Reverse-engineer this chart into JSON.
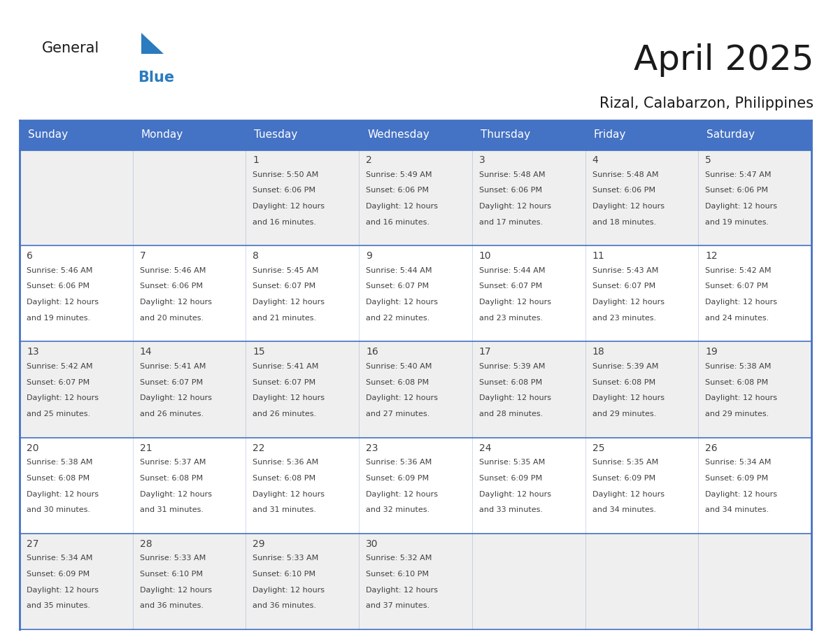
{
  "title": "April 2025",
  "subtitle": "Rizal, Calabarzon, Philippines",
  "header_bg_color": "#4472C4",
  "header_text_color": "#FFFFFF",
  "day_names": [
    "Sunday",
    "Monday",
    "Tuesday",
    "Wednesday",
    "Thursday",
    "Friday",
    "Saturday"
  ],
  "title_font_size": 36,
  "subtitle_font_size": 15,
  "date_font_size": 10,
  "cell_font_size": 8,
  "header_font_size": 11,
  "cell_text_color": "#404040",
  "row_colors": [
    "#EFEFEF",
    "#FFFFFF"
  ],
  "grid_color": "#4472C4",
  "logo_general_color": "#1A1A1A",
  "logo_blue_color": "#2B7BBF",
  "days": [
    {
      "date": 1,
      "col": 2,
      "row": 0,
      "sunrise": "5:50 AM",
      "sunset": "6:06 PM",
      "daylight_hours": 12,
      "daylight_minutes": 16
    },
    {
      "date": 2,
      "col": 3,
      "row": 0,
      "sunrise": "5:49 AM",
      "sunset": "6:06 PM",
      "daylight_hours": 12,
      "daylight_minutes": 16
    },
    {
      "date": 3,
      "col": 4,
      "row": 0,
      "sunrise": "5:48 AM",
      "sunset": "6:06 PM",
      "daylight_hours": 12,
      "daylight_minutes": 17
    },
    {
      "date": 4,
      "col": 5,
      "row": 0,
      "sunrise": "5:48 AM",
      "sunset": "6:06 PM",
      "daylight_hours": 12,
      "daylight_minutes": 18
    },
    {
      "date": 5,
      "col": 6,
      "row": 0,
      "sunrise": "5:47 AM",
      "sunset": "6:06 PM",
      "daylight_hours": 12,
      "daylight_minutes": 19
    },
    {
      "date": 6,
      "col": 0,
      "row": 1,
      "sunrise": "5:46 AM",
      "sunset": "6:06 PM",
      "daylight_hours": 12,
      "daylight_minutes": 19
    },
    {
      "date": 7,
      "col": 1,
      "row": 1,
      "sunrise": "5:46 AM",
      "sunset": "6:06 PM",
      "daylight_hours": 12,
      "daylight_minutes": 20
    },
    {
      "date": 8,
      "col": 2,
      "row": 1,
      "sunrise": "5:45 AM",
      "sunset": "6:07 PM",
      "daylight_hours": 12,
      "daylight_minutes": 21
    },
    {
      "date": 9,
      "col": 3,
      "row": 1,
      "sunrise": "5:44 AM",
      "sunset": "6:07 PM",
      "daylight_hours": 12,
      "daylight_minutes": 22
    },
    {
      "date": 10,
      "col": 4,
      "row": 1,
      "sunrise": "5:44 AM",
      "sunset": "6:07 PM",
      "daylight_hours": 12,
      "daylight_minutes": 23
    },
    {
      "date": 11,
      "col": 5,
      "row": 1,
      "sunrise": "5:43 AM",
      "sunset": "6:07 PM",
      "daylight_hours": 12,
      "daylight_minutes": 23
    },
    {
      "date": 12,
      "col": 6,
      "row": 1,
      "sunrise": "5:42 AM",
      "sunset": "6:07 PM",
      "daylight_hours": 12,
      "daylight_minutes": 24
    },
    {
      "date": 13,
      "col": 0,
      "row": 2,
      "sunrise": "5:42 AM",
      "sunset": "6:07 PM",
      "daylight_hours": 12,
      "daylight_minutes": 25
    },
    {
      "date": 14,
      "col": 1,
      "row": 2,
      "sunrise": "5:41 AM",
      "sunset": "6:07 PM",
      "daylight_hours": 12,
      "daylight_minutes": 26
    },
    {
      "date": 15,
      "col": 2,
      "row": 2,
      "sunrise": "5:41 AM",
      "sunset": "6:07 PM",
      "daylight_hours": 12,
      "daylight_minutes": 26
    },
    {
      "date": 16,
      "col": 3,
      "row": 2,
      "sunrise": "5:40 AM",
      "sunset": "6:08 PM",
      "daylight_hours": 12,
      "daylight_minutes": 27
    },
    {
      "date": 17,
      "col": 4,
      "row": 2,
      "sunrise": "5:39 AM",
      "sunset": "6:08 PM",
      "daylight_hours": 12,
      "daylight_minutes": 28
    },
    {
      "date": 18,
      "col": 5,
      "row": 2,
      "sunrise": "5:39 AM",
      "sunset": "6:08 PM",
      "daylight_hours": 12,
      "daylight_minutes": 29
    },
    {
      "date": 19,
      "col": 6,
      "row": 2,
      "sunrise": "5:38 AM",
      "sunset": "6:08 PM",
      "daylight_hours": 12,
      "daylight_minutes": 29
    },
    {
      "date": 20,
      "col": 0,
      "row": 3,
      "sunrise": "5:38 AM",
      "sunset": "6:08 PM",
      "daylight_hours": 12,
      "daylight_minutes": 30
    },
    {
      "date": 21,
      "col": 1,
      "row": 3,
      "sunrise": "5:37 AM",
      "sunset": "6:08 PM",
      "daylight_hours": 12,
      "daylight_minutes": 31
    },
    {
      "date": 22,
      "col": 2,
      "row": 3,
      "sunrise": "5:36 AM",
      "sunset": "6:08 PM",
      "daylight_hours": 12,
      "daylight_minutes": 31
    },
    {
      "date": 23,
      "col": 3,
      "row": 3,
      "sunrise": "5:36 AM",
      "sunset": "6:09 PM",
      "daylight_hours": 12,
      "daylight_minutes": 32
    },
    {
      "date": 24,
      "col": 4,
      "row": 3,
      "sunrise": "5:35 AM",
      "sunset": "6:09 PM",
      "daylight_hours": 12,
      "daylight_minutes": 33
    },
    {
      "date": 25,
      "col": 5,
      "row": 3,
      "sunrise": "5:35 AM",
      "sunset": "6:09 PM",
      "daylight_hours": 12,
      "daylight_minutes": 34
    },
    {
      "date": 26,
      "col": 6,
      "row": 3,
      "sunrise": "5:34 AM",
      "sunset": "6:09 PM",
      "daylight_hours": 12,
      "daylight_minutes": 34
    },
    {
      "date": 27,
      "col": 0,
      "row": 4,
      "sunrise": "5:34 AM",
      "sunset": "6:09 PM",
      "daylight_hours": 12,
      "daylight_minutes": 35
    },
    {
      "date": 28,
      "col": 1,
      "row": 4,
      "sunrise": "5:33 AM",
      "sunset": "6:10 PM",
      "daylight_hours": 12,
      "daylight_minutes": 36
    },
    {
      "date": 29,
      "col": 2,
      "row": 4,
      "sunrise": "5:33 AM",
      "sunset": "6:10 PM",
      "daylight_hours": 12,
      "daylight_minutes": 36
    },
    {
      "date": 30,
      "col": 3,
      "row": 4,
      "sunrise": "5:32 AM",
      "sunset": "6:10 PM",
      "daylight_hours": 12,
      "daylight_minutes": 37
    }
  ]
}
